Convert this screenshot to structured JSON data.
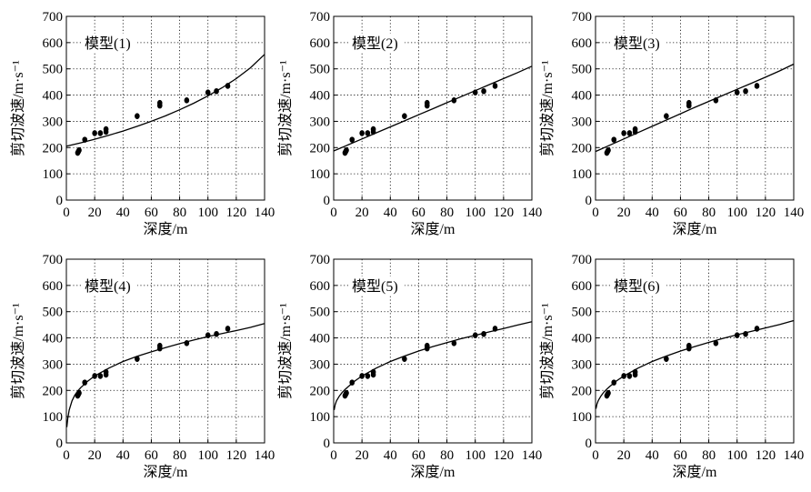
{
  "figure": {
    "xlabel": "深度/m",
    "ylabel": "剪切波速/m·s⁻¹"
  },
  "chart_data": [
    {
      "type": "scatter",
      "panel_label": "模型(1)",
      "xlabel": "深度/m",
      "ylabel": "剪切波速/m·s⁻¹",
      "xlim": [
        0,
        140
      ],
      "ylim": [
        0,
        700
      ],
      "xticks": [
        0,
        20,
        40,
        60,
        80,
        100,
        120,
        140
      ],
      "yticks": [
        0,
        100,
        200,
        300,
        400,
        500,
        600,
        700
      ],
      "grid": true,
      "points": {
        "x": [
          8,
          8.5,
          9,
          13,
          20,
          24,
          28,
          28,
          50,
          66,
          66,
          85,
          100,
          106,
          114
        ],
        "y": [
          180,
          185,
          190,
          230,
          255,
          255,
          260,
          270,
          320,
          360,
          370,
          380,
          410,
          415,
          435
        ]
      },
      "fit_curve": {
        "x": [
          0,
          10,
          20,
          30,
          40,
          50,
          60,
          70,
          80,
          90,
          100,
          110,
          120,
          130,
          140
        ],
        "y": [
          205,
          218,
          232,
          247,
          263,
          281,
          300,
          321,
          344,
          369,
          397,
          428,
          463,
          504,
          555
        ]
      }
    },
    {
      "type": "scatter",
      "panel_label": "模型(2)",
      "xlabel": "深度/m",
      "ylabel": "剪切波速/m·s⁻¹",
      "xlim": [
        0,
        140
      ],
      "ylim": [
        0,
        700
      ],
      "xticks": [
        0,
        20,
        40,
        60,
        80,
        100,
        120,
        140
      ],
      "yticks": [
        0,
        100,
        200,
        300,
        400,
        500,
        600,
        700
      ],
      "grid": true,
      "points": {
        "x": [
          8,
          8.5,
          9,
          13,
          20,
          24,
          28,
          28,
          50,
          66,
          66,
          85,
          100,
          106,
          114
        ],
        "y": [
          180,
          185,
          190,
          230,
          255,
          255,
          260,
          270,
          320,
          360,
          370,
          380,
          410,
          415,
          435
        ]
      },
      "fit_curve": {
        "x": [
          0,
          10,
          20,
          30,
          40,
          50,
          60,
          70,
          80,
          90,
          100,
          110,
          120,
          130,
          140
        ],
        "y": [
          187,
          210,
          233,
          256,
          279,
          302,
          325,
          348,
          371,
          394,
          417,
          440,
          463,
          486,
          510
        ]
      }
    },
    {
      "type": "scatter",
      "panel_label": "模型(3)",
      "xlabel": "深度/m",
      "ylabel": "剪切波速/m·s⁻¹",
      "xlim": [
        0,
        140
      ],
      "ylim": [
        0,
        700
      ],
      "xticks": [
        0,
        20,
        40,
        60,
        80,
        100,
        120,
        140
      ],
      "yticks": [
        0,
        100,
        200,
        300,
        400,
        500,
        600,
        700
      ],
      "grid": true,
      "points": {
        "x": [
          8,
          8.5,
          9,
          13,
          20,
          24,
          28,
          28,
          50,
          66,
          66,
          85,
          100,
          106,
          114
        ],
        "y": [
          180,
          185,
          190,
          230,
          255,
          255,
          260,
          270,
          320,
          360,
          370,
          380,
          410,
          415,
          435
        ]
      },
      "fit_curve": {
        "x": [
          0,
          10,
          20,
          30,
          40,
          50,
          60,
          70,
          80,
          90,
          100,
          110,
          120,
          130,
          140
        ],
        "y": [
          185,
          209,
          233,
          257,
          281,
          305,
          329,
          353,
          376,
          399,
          422,
          445,
          468,
          492,
          518
        ]
      }
    },
    {
      "type": "scatter",
      "panel_label": "模型(4)",
      "xlabel": "深度/m",
      "ylabel": "剪切波速/m·s⁻¹",
      "xlim": [
        0,
        140
      ],
      "ylim": [
        0,
        700
      ],
      "xticks": [
        0,
        20,
        40,
        60,
        80,
        100,
        120,
        140
      ],
      "yticks": [
        0,
        100,
        200,
        300,
        400,
        500,
        600,
        700
      ],
      "grid": true,
      "points": {
        "x": [
          8,
          8.5,
          9,
          13,
          20,
          24,
          28,
          28,
          50,
          66,
          66,
          85,
          100,
          106,
          114
        ],
        "y": [
          180,
          185,
          190,
          230,
          255,
          255,
          260,
          270,
          320,
          360,
          370,
          380,
          410,
          415,
          435
        ]
      },
      "fit_curve": {
        "x": [
          0.3,
          1,
          2,
          4,
          6,
          8,
          10,
          15,
          20,
          30,
          40,
          50,
          60,
          70,
          80,
          90,
          100,
          110,
          120,
          130,
          140
        ],
        "y": [
          60,
          95,
          125,
          160,
          182,
          198,
          210,
          235,
          255,
          285,
          310,
          330,
          347,
          363,
          378,
          392,
          405,
          417,
          428,
          440,
          455
        ]
      }
    },
    {
      "type": "scatter",
      "panel_label": "模型(5)",
      "xlabel": "深度/m",
      "ylabel": "剪切波速/m·s⁻¹",
      "xlim": [
        0,
        140
      ],
      "ylim": [
        0,
        700
      ],
      "xticks": [
        0,
        20,
        40,
        60,
        80,
        100,
        120,
        140
      ],
      "yticks": [
        0,
        100,
        200,
        300,
        400,
        500,
        600,
        700
      ],
      "grid": true,
      "points": {
        "x": [
          8,
          8.5,
          9,
          13,
          20,
          24,
          28,
          28,
          50,
          66,
          66,
          85,
          100,
          106,
          114
        ],
        "y": [
          180,
          185,
          190,
          230,
          255,
          255,
          260,
          270,
          320,
          360,
          370,
          380,
          410,
          415,
          435
        ]
      },
      "fit_curve": {
        "x": [
          0.3,
          1,
          2,
          4,
          6,
          8,
          10,
          15,
          20,
          30,
          40,
          50,
          60,
          70,
          80,
          90,
          100,
          110,
          120,
          130,
          140
        ],
        "y": [
          125,
          145,
          160,
          178,
          192,
          203,
          213,
          236,
          255,
          285,
          310,
          331,
          350,
          367,
          382,
          397,
          410,
          423,
          436,
          449,
          462
        ]
      }
    },
    {
      "type": "scatter",
      "panel_label": "模型(6)",
      "xlabel": "深度/m",
      "ylabel": "剪切波速/m·s⁻¹",
      "xlim": [
        0,
        140
      ],
      "ylim": [
        0,
        700
      ],
      "xticks": [
        0,
        20,
        40,
        60,
        80,
        100,
        120,
        140
      ],
      "yticks": [
        0,
        100,
        200,
        300,
        400,
        500,
        600,
        700
      ],
      "grid": true,
      "points": {
        "x": [
          8,
          8.5,
          9,
          13,
          20,
          24,
          28,
          28,
          50,
          66,
          66,
          85,
          100,
          106,
          114
        ],
        "y": [
          180,
          185,
          190,
          230,
          255,
          255,
          260,
          270,
          320,
          360,
          370,
          380,
          410,
          415,
          435
        ]
      },
      "fit_curve": {
        "x": [
          0.3,
          1,
          2,
          4,
          6,
          8,
          10,
          15,
          20,
          30,
          40,
          50,
          60,
          70,
          80,
          90,
          100,
          110,
          120,
          130,
          140
        ],
        "y": [
          130,
          148,
          162,
          180,
          194,
          205,
          215,
          237,
          255,
          285,
          310,
          331,
          350,
          367,
          383,
          398,
          412,
          425,
          438,
          451,
          466
        ]
      }
    }
  ]
}
